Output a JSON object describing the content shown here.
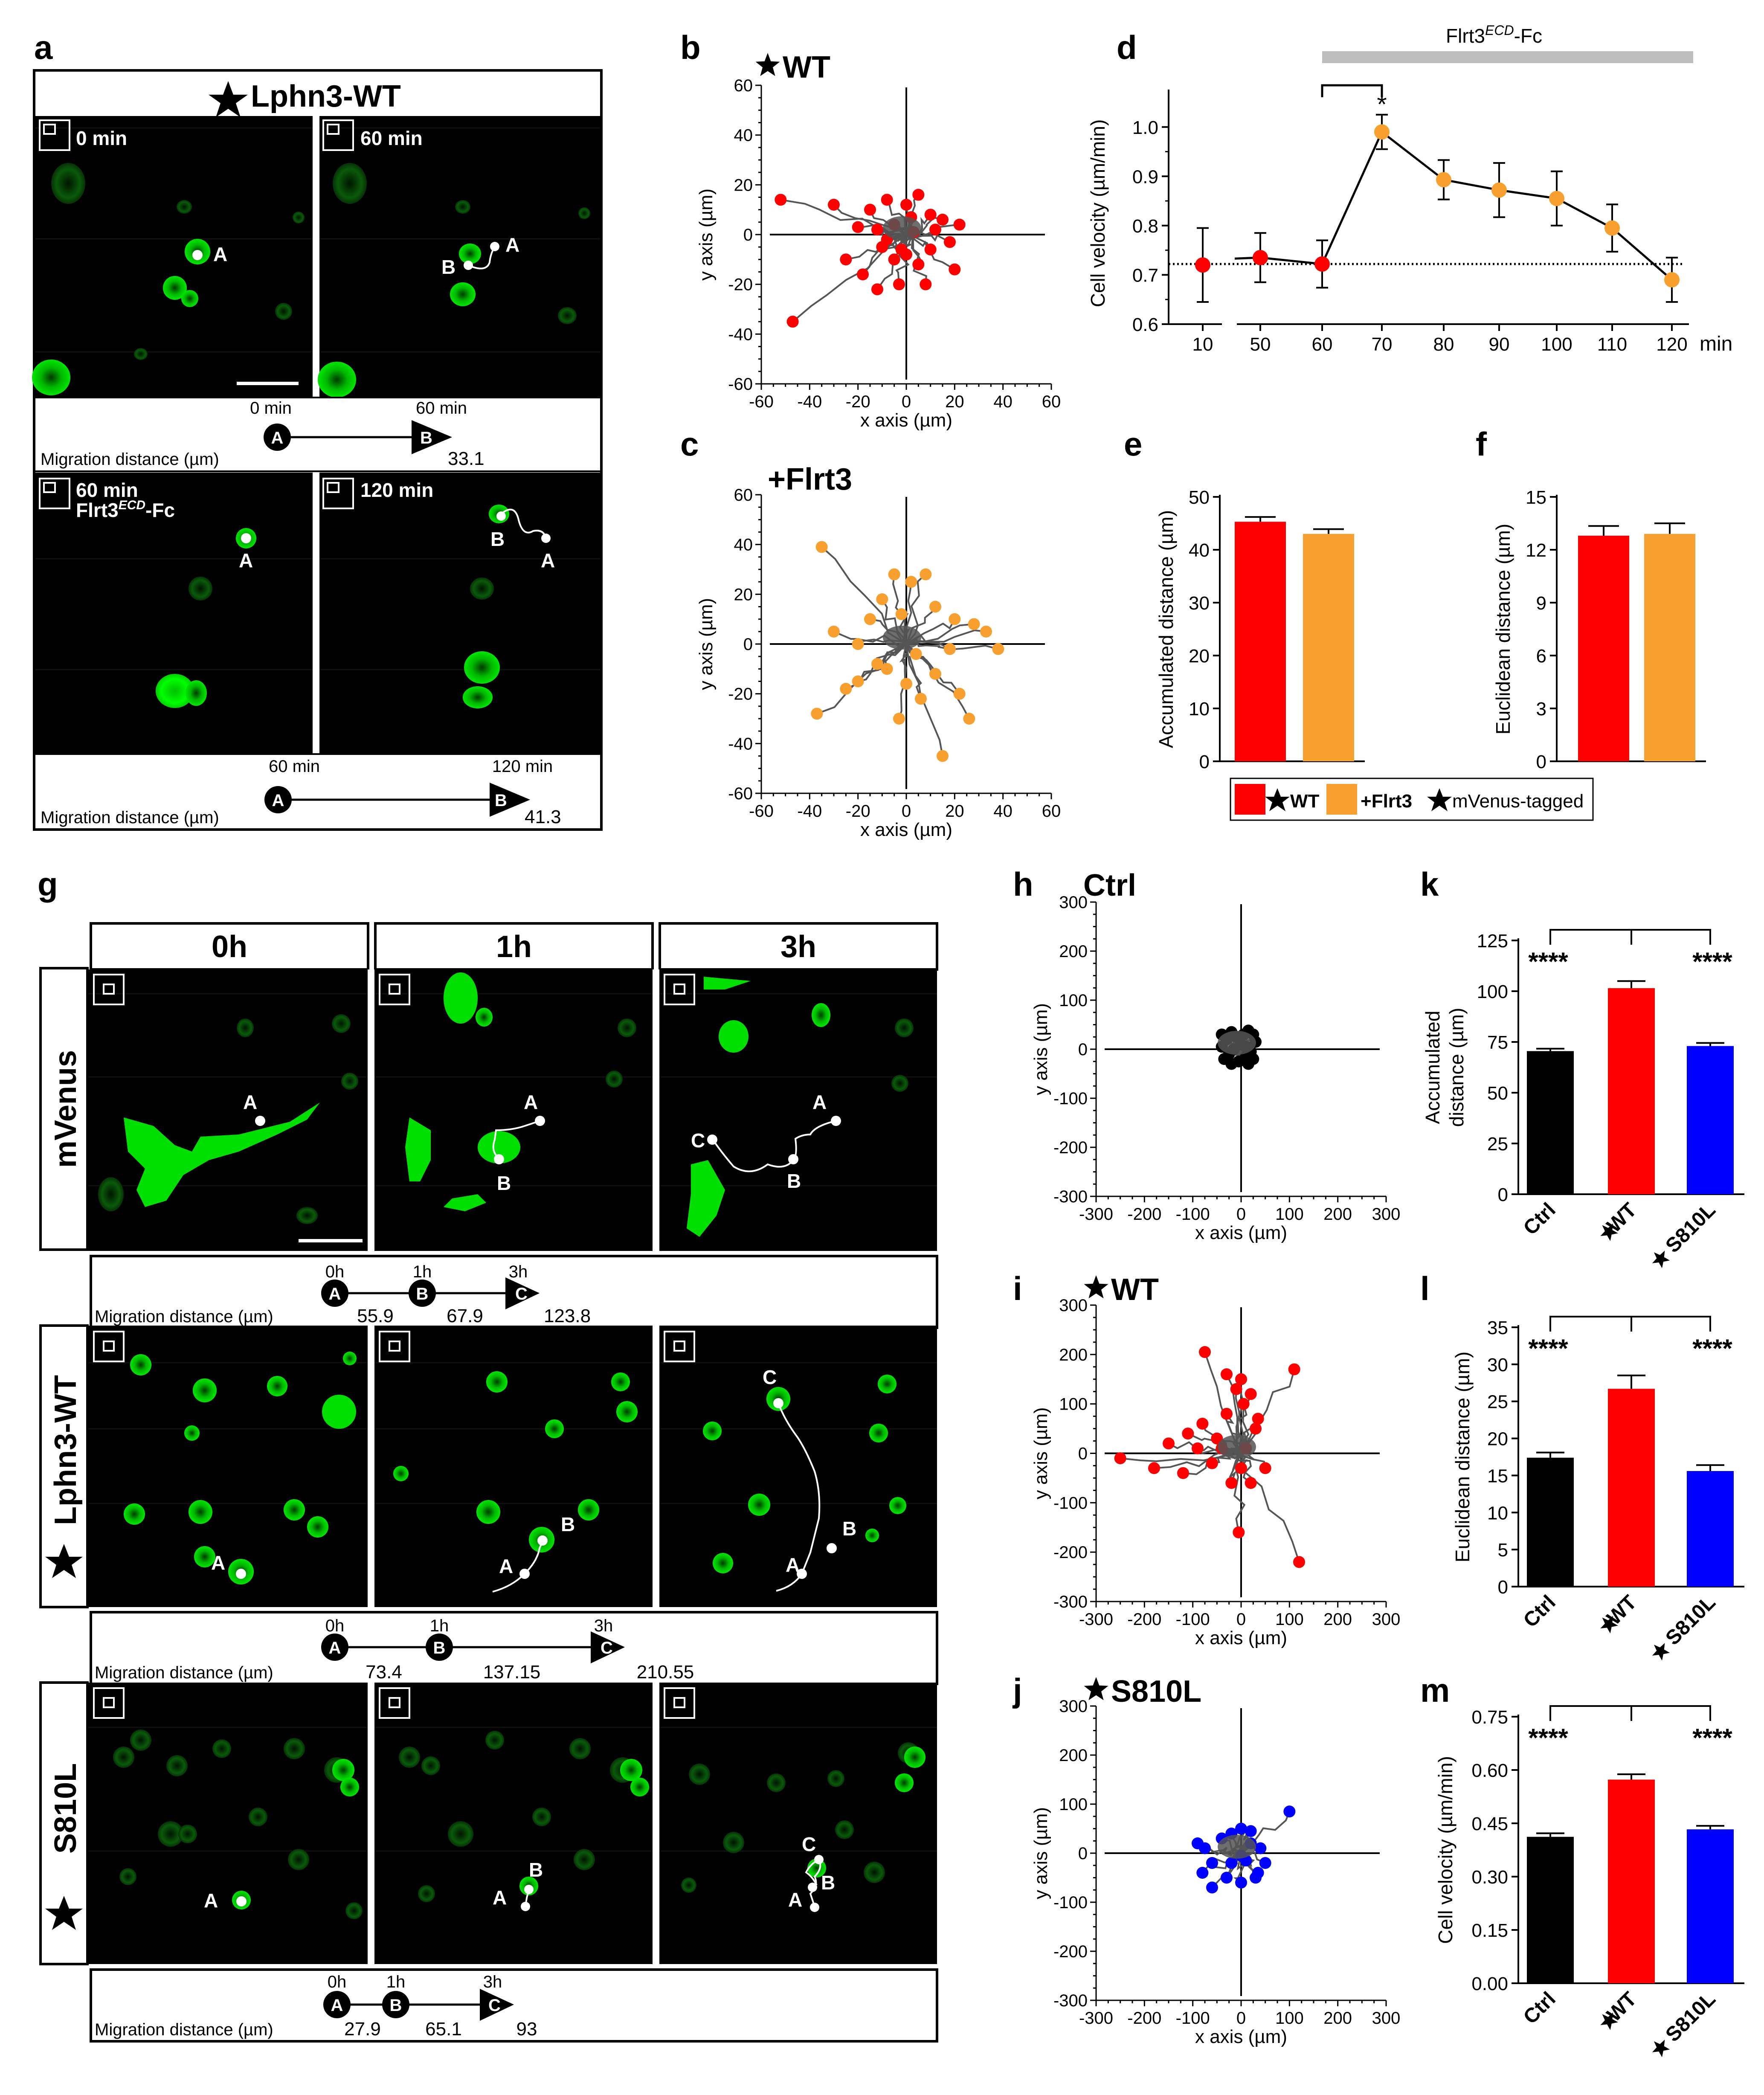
{
  "panel_labels": {
    "a": "a",
    "b": "b",
    "c": "c",
    "d": "d",
    "e": "e",
    "f": "f",
    "g": "g",
    "h": "h",
    "i": "i",
    "j": "j",
    "k": "k",
    "l": "l",
    "m": "m"
  },
  "panel_a": {
    "title": "Lphn3-WT",
    "t0": "0 min",
    "t60": "60 min",
    "t60f_line1": "60 min",
    "t60f_line2": "Flrt3",
    "t60f_sup": "ECD",
    "t60f_suffix": "-Fc",
    "t120": "120 min",
    "cell_a": "A",
    "cell_b": "B",
    "track1": {
      "start_time": "0 min",
      "end_time": "60 min",
      "label": "Migration distance (µm)",
      "value": "33.1",
      "start": "A",
      "end": "B"
    },
    "track2": {
      "start_time": "60 min",
      "end_time": "120 min",
      "label": "Migration distance (µm)",
      "value": "41.3",
      "start": "A",
      "end": "B"
    }
  },
  "panel_g": {
    "col_headers": [
      "0h",
      "1h",
      "3h"
    ],
    "row_labels": [
      "mVenus",
      "Lphn3-WT",
      "S810L"
    ],
    "cells": {
      "a": "A",
      "b": "B",
      "c": "C"
    },
    "tracks": [
      {
        "label": "Migration distance (µm)",
        "times": [
          "0h",
          "1h",
          "3h"
        ],
        "values": [
          "55.9",
          "67.9",
          "123.8"
        ],
        "nodes": [
          "A",
          "B",
          "C"
        ]
      },
      {
        "label": "Migration distance (µm)",
        "times": [
          "0h",
          "1h",
          "3h"
        ],
        "values": [
          "73.4",
          "137.15",
          "210.55"
        ],
        "nodes": [
          "A",
          "B",
          "C"
        ]
      },
      {
        "label": "Migration distance (µm)",
        "times": [
          "0h",
          "1h",
          "3h"
        ],
        "values": [
          "27.9",
          "65.1",
          "93"
        ],
        "nodes": [
          "A",
          "B",
          "C"
        ]
      }
    ]
  },
  "legend": {
    "wt": "WT",
    "flrt3": "+Flrt3",
    "mvenus": "mVenus-tagged"
  },
  "colors": {
    "wt": "#ff0000",
    "flrt3": "#f7a030",
    "ctrl": "#000000",
    "s810l": "#0000ff",
    "track": "#555555",
    "green": "#00e000",
    "bar_gray": "#bdbdbd"
  },
  "chart_data": [
    {
      "id": "b",
      "type": "scatter",
      "title": "WT",
      "xlabel": "x axis (µm)",
      "ylabel": "y axis (µm)",
      "xlim": [
        -60,
        60
      ],
      "ylim": [
        -60,
        60
      ],
      "xticks": [
        "-60",
        "-40",
        "-20",
        "0",
        "20",
        "40",
        "60"
      ],
      "yticks": [
        "-60",
        "-40",
        "-20",
        "0",
        "20",
        "40",
        "60"
      ],
      "points": [
        [
          -52,
          14
        ],
        [
          -30,
          12
        ],
        [
          -20,
          3
        ],
        [
          -15,
          10
        ],
        [
          -12,
          2
        ],
        [
          -8,
          14
        ],
        [
          -5,
          4
        ],
        [
          0,
          12
        ],
        [
          5,
          16
        ],
        [
          10,
          8
        ],
        [
          15,
          6
        ],
        [
          22,
          4
        ],
        [
          -10,
          -5
        ],
        [
          -5,
          -10
        ],
        [
          0,
          -8
        ],
        [
          5,
          -12
        ],
        [
          10,
          -6
        ],
        [
          20,
          -14
        ],
        [
          -25,
          -10
        ],
        [
          -18,
          -16
        ],
        [
          -12,
          -22
        ],
        [
          -3,
          -20
        ],
        [
          8,
          -20
        ],
        [
          18,
          -3
        ],
        [
          -47,
          -35
        ],
        [
          -2,
          -6
        ],
        [
          3,
          1
        ],
        [
          -8,
          -2
        ],
        [
          12,
          2
        ],
        [
          2,
          7
        ]
      ]
    },
    {
      "id": "c",
      "type": "scatter",
      "title": "+Flrt3",
      "xlabel": "x axis (µm)",
      "ylabel": "y axis (µm)",
      "xlim": [
        -60,
        60
      ],
      "ylim": [
        -60,
        60
      ],
      "xticks": [
        "-60",
        "-40",
        "-20",
        "0",
        "20",
        "40",
        "60"
      ],
      "yticks": [
        "-60",
        "-40",
        "-20",
        "0",
        "20",
        "40",
        "60"
      ],
      "points": [
        [
          -35,
          39
        ],
        [
          -30,
          5
        ],
        [
          -25,
          -18
        ],
        [
          -20,
          -15
        ],
        [
          -15,
          10
        ],
        [
          -10,
          18
        ],
        [
          -5,
          28
        ],
        [
          2,
          25
        ],
        [
          8,
          28
        ],
        [
          12,
          15
        ],
        [
          20,
          10
        ],
        [
          28,
          8
        ],
        [
          33,
          5
        ],
        [
          38,
          -2
        ],
        [
          -8,
          -10
        ],
        [
          0,
          -16
        ],
        [
          6,
          -22
        ],
        [
          12,
          -12
        ],
        [
          15,
          -45
        ],
        [
          -3,
          -30
        ],
        [
          -37,
          -28
        ],
        [
          26,
          -30
        ],
        [
          22,
          -20
        ],
        [
          -12,
          -8
        ],
        [
          4,
          -4
        ],
        [
          -20,
          0
        ],
        [
          18,
          -2
        ],
        [
          -2,
          12
        ]
      ]
    },
    {
      "id": "d",
      "type": "line",
      "xlabel": "min",
      "ylabel": "Cell velocity (µm/min)",
      "ylim": [
        0.6,
        1.05
      ],
      "categories": [
        "10",
        "50",
        "60",
        "70",
        "80",
        "90",
        "100",
        "110",
        "120"
      ],
      "values": [
        0.72,
        0.735,
        0.722,
        0.99,
        0.893,
        0.872,
        0.855,
        0.795,
        0.69
      ],
      "errors": [
        0.075,
        0.05,
        0.048,
        0.035,
        0.04,
        0.055,
        0.055,
        0.048,
        0.045
      ],
      "yticks": [
        "0.6",
        "0.7",
        "0.8",
        "0.9",
        "1.0"
      ],
      "treatment": "Flrt3",
      "treatment_sup": "ECD",
      "treatment_suffix": "-Fc",
      "baseline": 0.722,
      "significance": "*"
    },
    {
      "id": "e",
      "type": "bar",
      "ylabel": "Accumulated distance (µm)",
      "ylim": [
        0,
        50
      ],
      "yticks": [
        "0",
        "10",
        "20",
        "30",
        "40",
        "50"
      ],
      "categories": [
        "WT",
        "+Flrt3"
      ],
      "values": [
        45.3,
        43.0
      ],
      "errors": [
        0.9,
        0.9
      ]
    },
    {
      "id": "f",
      "type": "bar",
      "ylabel": "Euclidean distance (µm)",
      "ylim": [
        0,
        15
      ],
      "yticks": [
        "0",
        "3",
        "6",
        "9",
        "12",
        "15"
      ],
      "categories": [
        "WT",
        "+Flrt3"
      ],
      "values": [
        12.8,
        12.9
      ],
      "errors": [
        0.55,
        0.6
      ]
    },
    {
      "id": "h",
      "type": "scatter",
      "title": "Ctrl",
      "xlabel": "x axis (µm)",
      "ylabel": "y axis (µm)",
      "xlim": [
        -300,
        300
      ],
      "ylim": [
        -300,
        300
      ],
      "xticks": [
        "-300",
        "-200",
        "-100",
        "0",
        "100",
        "200",
        "300"
      ],
      "yticks": [
        "-300",
        "-200",
        "-100",
        "0",
        "100",
        "200",
        "300"
      ],
      "points": [
        [
          -40,
          30
        ],
        [
          -30,
          20
        ],
        [
          -20,
          35
        ],
        [
          -10,
          25
        ],
        [
          5,
          30
        ],
        [
          15,
          38
        ],
        [
          25,
          30
        ],
        [
          30,
          15
        ],
        [
          20,
          -5
        ],
        [
          10,
          -15
        ],
        [
          -5,
          -25
        ],
        [
          -20,
          -30
        ],
        [
          -35,
          -20
        ],
        [
          -40,
          5
        ],
        [
          0,
          10
        ],
        [
          10,
          5
        ],
        [
          -15,
          0
        ],
        [
          25,
          -20
        ],
        [
          15,
          -30
        ],
        [
          -25,
          -10
        ]
      ]
    },
    {
      "id": "i",
      "type": "scatter",
      "title": "WT",
      "xlabel": "x axis (µm)",
      "ylabel": "y axis (µm)",
      "xlim": [
        -300,
        300
      ],
      "ylim": [
        -300,
        300
      ],
      "xticks": [
        "-300",
        "-200",
        "-100",
        "0",
        "100",
        "200",
        "300"
      ],
      "yticks": [
        "-300",
        "-200",
        "-100",
        "0",
        "100",
        "200",
        "300"
      ],
      "points": [
        [
          -250,
          -10
        ],
        [
          -180,
          -30
        ],
        [
          -150,
          20
        ],
        [
          -120,
          -40
        ],
        [
          -80,
          60
        ],
        [
          -50,
          30
        ],
        [
          -30,
          80
        ],
        [
          -10,
          130
        ],
        [
          0,
          150
        ],
        [
          20,
          120
        ],
        [
          35,
          70
        ],
        [
          -75,
          205
        ],
        [
          -30,
          160
        ],
        [
          5,
          100
        ],
        [
          -5,
          -160
        ],
        [
          50,
          -30
        ],
        [
          20,
          -60
        ],
        [
          -20,
          -60
        ],
        [
          -90,
          10
        ],
        [
          110,
          170
        ],
        [
          120,
          -220
        ],
        [
          -40,
          10
        ],
        [
          10,
          10
        ],
        [
          30,
          50
        ],
        [
          -60,
          -20
        ],
        [
          0,
          -30
        ],
        [
          -110,
          40
        ]
      ]
    },
    {
      "id": "j",
      "type": "scatter",
      "title": "S810L",
      "xlabel": "x axis (µm)",
      "ylabel": "y axis (µm)",
      "xlim": [
        -300,
        300
      ],
      "ylim": [
        -300,
        300
      ],
      "xticks": [
        "-300",
        "-200",
        "-100",
        "0",
        "100",
        "200",
        "300"
      ],
      "yticks": [
        "-300",
        "-200",
        "-100",
        "0",
        "100",
        "200",
        "300"
      ],
      "points": [
        [
          -90,
          20
        ],
        [
          -80,
          -40
        ],
        [
          -60,
          -20
        ],
        [
          -40,
          30
        ],
        [
          -20,
          40
        ],
        [
          0,
          50
        ],
        [
          20,
          45
        ],
        [
          40,
          10
        ],
        [
          50,
          -20
        ],
        [
          30,
          -50
        ],
        [
          0,
          -60
        ],
        [
          -30,
          -50
        ],
        [
          -60,
          -70
        ],
        [
          -20,
          -20
        ],
        [
          10,
          -15
        ],
        [
          100,
          85
        ],
        [
          -75,
          10
        ],
        [
          20,
          20
        ],
        [
          0,
          -5
        ],
        [
          35,
          -40
        ]
      ]
    },
    {
      "id": "k",
      "type": "bar",
      "ylabel": "Accumulated distance (µm)",
      "ylim": [
        0,
        125
      ],
      "yticks": [
        "0",
        "25",
        "50",
        "75",
        "100",
        "125"
      ],
      "categories": [
        "Ctrl",
        "WT",
        "S810L"
      ],
      "values": [
        70.5,
        101.5,
        73.0
      ],
      "errors": [
        1.2,
        3.5,
        1.5
      ],
      "significance": [
        "****",
        "****"
      ]
    },
    {
      "id": "l",
      "type": "bar",
      "ylabel": "Euclidean distance (µm)",
      "ylim": [
        0,
        35
      ],
      "yticks": [
        "0",
        "5",
        "10",
        "15",
        "20",
        "25",
        "30",
        "35"
      ],
      "categories": [
        "Ctrl",
        "WT",
        "S810L"
      ],
      "values": [
        17.4,
        26.7,
        15.6
      ],
      "errors": [
        0.7,
        1.8,
        0.8
      ],
      "significance": [
        "****",
        "****"
      ]
    },
    {
      "id": "m",
      "type": "bar",
      "ylabel": "Cell velocity (µm/min)",
      "ylim": [
        0,
        0.75
      ],
      "yticks": [
        "0.00",
        "0.15",
        "0.30",
        "0.45",
        "0.60",
        "0.75"
      ],
      "categories": [
        "Ctrl",
        "WT",
        "S810L"
      ],
      "values": [
        0.412,
        0.573,
        0.433
      ],
      "errors": [
        0.01,
        0.015,
        0.01
      ],
      "significance": [
        "****",
        "****"
      ]
    }
  ]
}
